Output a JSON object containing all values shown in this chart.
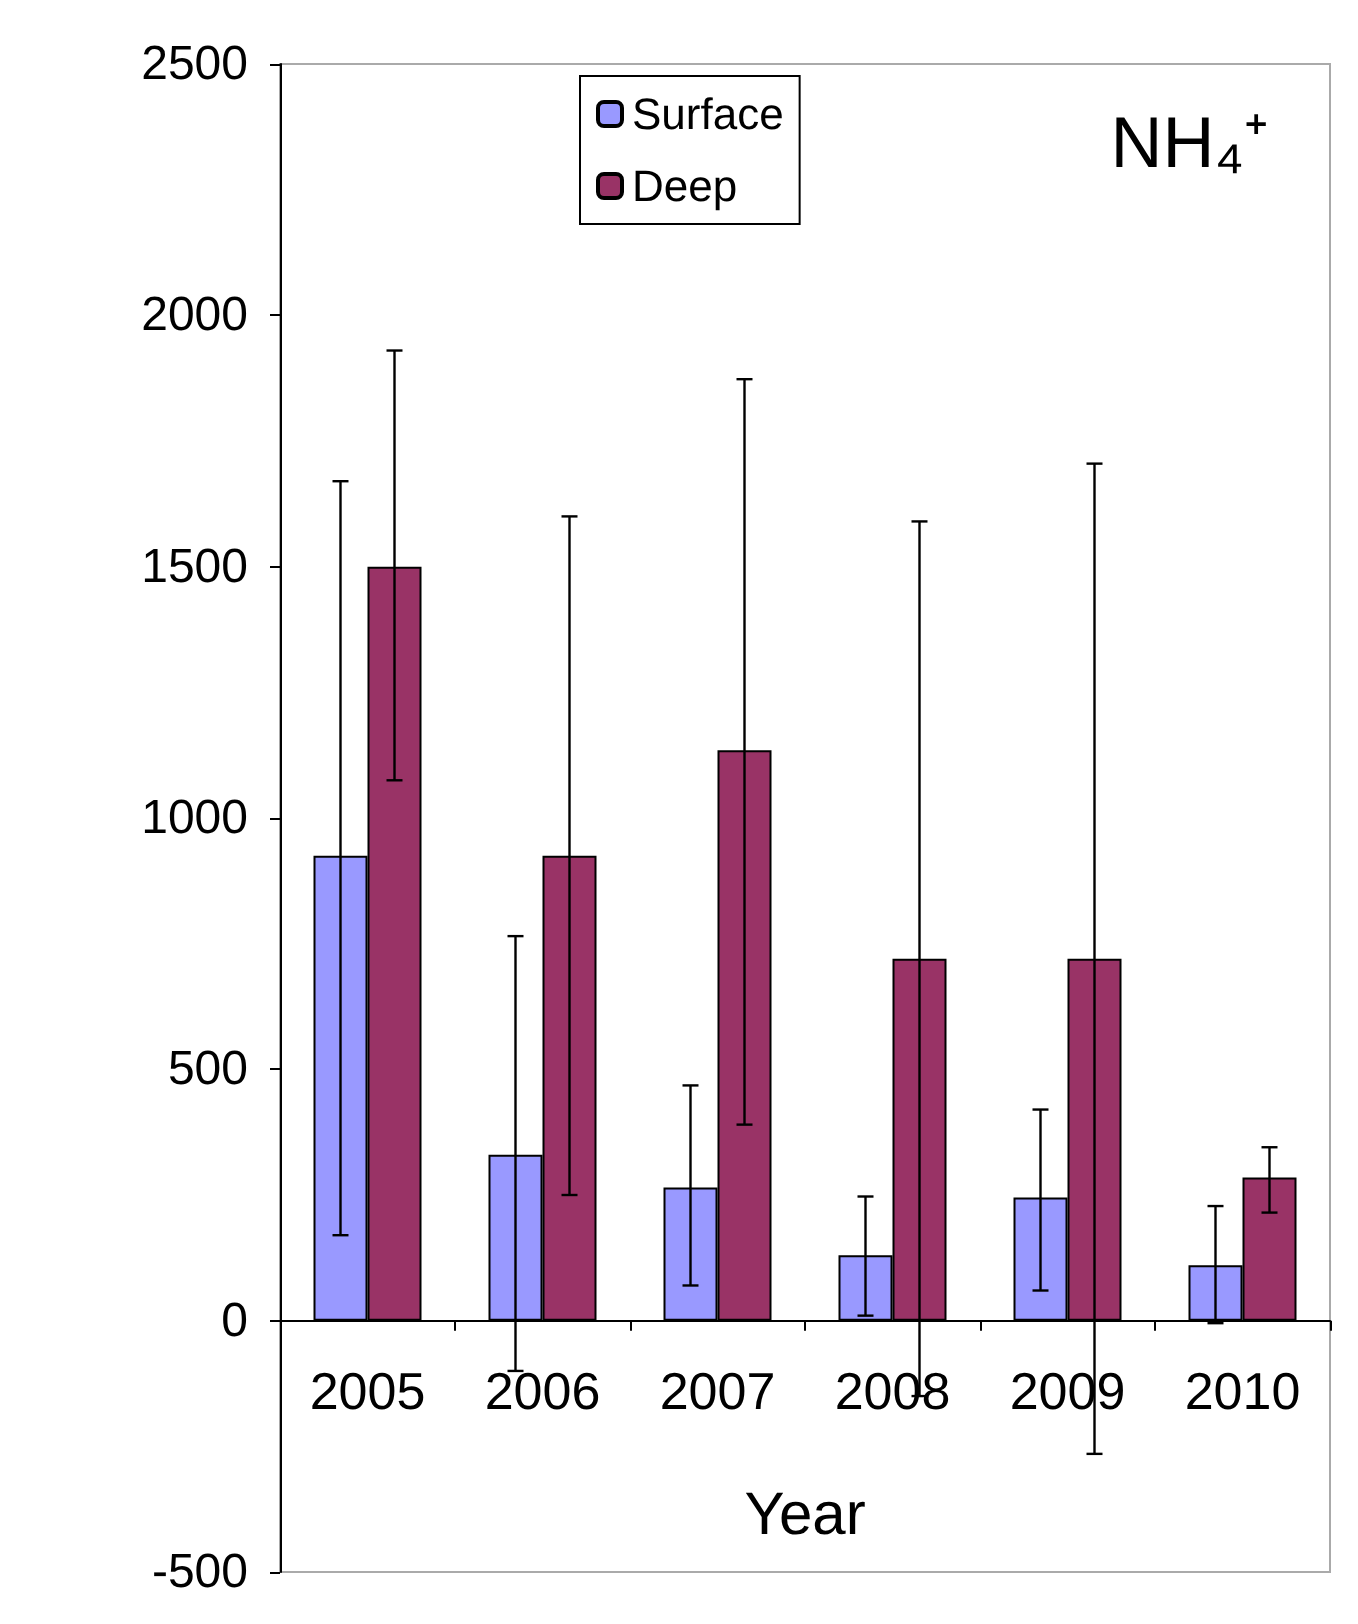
{
  "chart_data": {
    "type": "bar",
    "title": "NH₄⁺",
    "xlabel": "Year",
    "categories": [
      "2005",
      "2006",
      "2007",
      "2008",
      "2009",
      "2010"
    ],
    "series": [
      {
        "name": "Surface",
        "color": "#9999ff",
        "values": [
          925,
          330,
          265,
          130,
          245,
          110
        ],
        "errors": [
          [
            170,
            1670
          ],
          [
            -100,
            765
          ],
          [
            70,
            468
          ],
          [
            10,
            247
          ],
          [
            60,
            420
          ],
          [
            -5,
            228
          ]
        ]
      },
      {
        "name": "Deep",
        "color": "#993366",
        "values": [
          1500,
          925,
          1135,
          720,
          720,
          285
        ],
        "errors": [
          [
            1075,
            1930
          ],
          [
            250,
            1600
          ],
          [
            390,
            1873
          ],
          [
            -150,
            1590
          ],
          [
            -265,
            1705
          ],
          [
            215,
            345
          ]
        ]
      }
    ],
    "ylim": [
      -500,
      2500
    ],
    "yticks": [
      -500,
      0,
      500,
      1000,
      1500,
      2000,
      2500
    ],
    "legend": "top"
  }
}
